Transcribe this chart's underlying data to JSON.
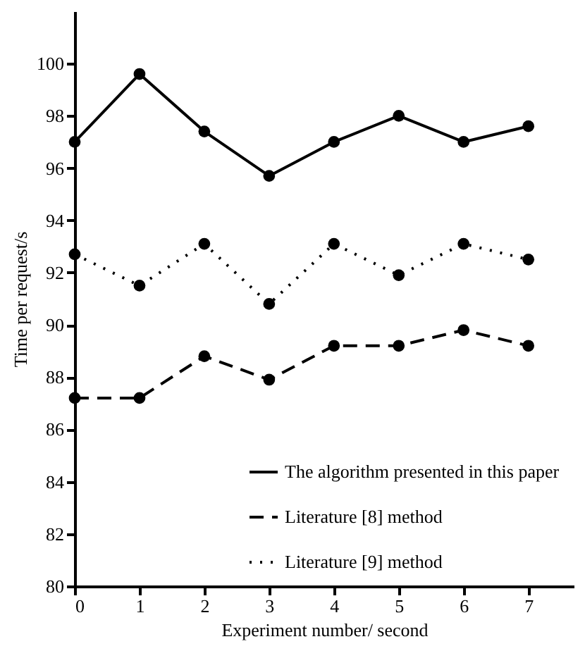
{
  "chart_data": {
    "type": "line",
    "xlabel": "Experiment number/ second",
    "ylabel": "Time per request/s",
    "x": [
      0,
      1,
      2,
      3,
      4,
      5,
      6,
      7
    ],
    "series": [
      {
        "name": "The algorithm presented in this paper",
        "color": "#000000",
        "line_style": "solid",
        "values": [
          97.0,
          99.6,
          97.4,
          95.7,
          97.0,
          98.0,
          97.0,
          97.6
        ]
      },
      {
        "name": "Literature [8] method",
        "color": "#000000",
        "line_style": "dashed",
        "values": [
          87.2,
          87.2,
          88.8,
          87.9,
          89.2,
          89.2,
          89.8,
          89.2
        ]
      },
      {
        "name": "Literature [9] method",
        "color": "#000000",
        "line_style": "dotted",
        "values": [
          92.7,
          91.5,
          93.1,
          90.8,
          93.1,
          91.9,
          93.1,
          92.5
        ]
      }
    ],
    "xlim": [
      0,
      7.7
    ],
    "ylim": [
      80,
      102
    ],
    "xticks": [
      0,
      1,
      2,
      3,
      4,
      5,
      6,
      7
    ],
    "yticks": [
      80,
      82,
      84,
      86,
      88,
      90,
      92,
      94,
      96,
      98,
      100
    ],
    "grid": false,
    "legend": "bottom right",
    "marker": "circle"
  }
}
